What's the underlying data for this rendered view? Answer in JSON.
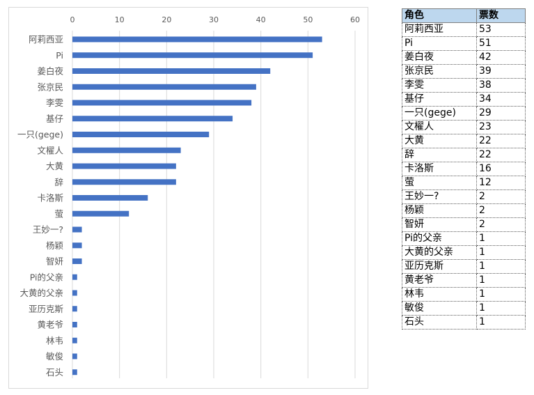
{
  "colors": {
    "bar": "#4472c4",
    "grid": "#d9d9d9",
    "header_bg": "#bdd7ee"
  },
  "chart_data": {
    "type": "bar",
    "orientation": "horizontal",
    "title": "",
    "xlabel": "",
    "ylabel": "",
    "xlim": [
      0,
      60
    ],
    "ticks": [
      "0",
      "10",
      "20",
      "30",
      "40",
      "50",
      "60"
    ],
    "tick_values": [
      0,
      10,
      20,
      30,
      40,
      50,
      60
    ],
    "grid": true,
    "legend": false,
    "categories": [
      "阿莉西亚",
      "Pi",
      "姜白夜",
      "张京民",
      "李雯",
      "基仔",
      "一只(gege)",
      "文櫂人",
      "大黄",
      "辞",
      "卡洛斯",
      "萤",
      "王妙一?",
      "杨颖",
      "智妍",
      "Pi的父亲",
      "大黄的父亲",
      "亚历克斯",
      "黄老爷",
      "林韦",
      "敏俊",
      "石头"
    ],
    "values": [
      53,
      51,
      42,
      39,
      38,
      34,
      29,
      23,
      22,
      22,
      16,
      12,
      2,
      2,
      2,
      1,
      1,
      1,
      1,
      1,
      1,
      1
    ]
  },
  "table": {
    "headers": [
      "角色",
      "票数"
    ],
    "rows": [
      [
        "阿莉西亚",
        "53"
      ],
      [
        "Pi",
        "51"
      ],
      [
        "姜白夜",
        "42"
      ],
      [
        "张京民",
        "39"
      ],
      [
        "李雯",
        "38"
      ],
      [
        "基仔",
        "34"
      ],
      [
        "一只(gege)",
        "29"
      ],
      [
        "文櫂人",
        "23"
      ],
      [
        "大黄",
        "22"
      ],
      [
        "辞",
        "22"
      ],
      [
        "卡洛斯",
        "16"
      ],
      [
        "萤",
        "12"
      ],
      [
        "王妙一?",
        "2"
      ],
      [
        "杨颖",
        "2"
      ],
      [
        "智妍",
        "2"
      ],
      [
        "Pi的父亲",
        "1"
      ],
      [
        "大黄的父亲",
        "1"
      ],
      [
        "亚历克斯",
        "1"
      ],
      [
        "黄老爷",
        "1"
      ],
      [
        "林韦",
        "1"
      ],
      [
        "敏俊",
        "1"
      ],
      [
        "石头",
        "1"
      ]
    ]
  }
}
